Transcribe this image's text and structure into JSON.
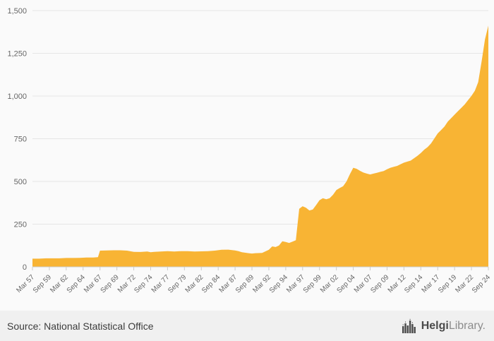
{
  "chart": {
    "colors": {
      "area": "#f8b434",
      "grid": "#e6e6e6",
      "axis_line": "#cccccc",
      "axis_text": "#666666",
      "background": "#fafafa",
      "footer_background": "#f0f0f0",
      "logo_dark": "#4a4a4a",
      "logo_light": "#8c8c8c"
    }
  },
  "chart_data": {
    "type": "area",
    "title": "",
    "xlabel": "",
    "ylabel": "",
    "grid": true,
    "legend": false,
    "ylim": [
      0,
      1500
    ],
    "xlim": [
      1957.2,
      2024.7
    ],
    "y_ticks": [
      0,
      250,
      500,
      750,
      1000,
      1250,
      1500
    ],
    "y_tick_labels": [
      "0",
      "250",
      "500",
      "750",
      "1,000",
      "1,250",
      "1,500"
    ],
    "x_tick_positions": [
      1957.2,
      1959.7,
      1962.2,
      1964.7,
      1967.2,
      1969.7,
      1972.2,
      1974.7,
      1977.2,
      1979.7,
      1982.2,
      1984.7,
      1987.2,
      1989.7,
      1992.2,
      1994.7,
      1997.2,
      1999.7,
      2002.2,
      2004.7,
      2007.2,
      2009.7,
      2012.2,
      2014.7,
      2017.2,
      2019.7,
      2022.2,
      2024.7
    ],
    "x_tick_labels": [
      "Mar 57",
      "Sep 59",
      "Mar 62",
      "Sep 64",
      "Mar 67",
      "Sep 69",
      "Mar 72",
      "Sep 74",
      "Mar 77",
      "Sep 79",
      "Mar 82",
      "Sep 84",
      "Mar 87",
      "Sep 89",
      "Mar 92",
      "Sep 94",
      "Mar 97",
      "Sep 99",
      "Mar 02",
      "Sep 04",
      "Mar 07",
      "Sep 09",
      "Mar 12",
      "Sep 14",
      "Mar 17",
      "Sep 19",
      "Mar 22",
      "Sep 24"
    ],
    "x": [
      1957.2,
      1958.2,
      1959.2,
      1960.2,
      1961.2,
      1962.2,
      1963.2,
      1964.2,
      1965.2,
      1966.2,
      1966.9,
      1967.2,
      1968.2,
      1969.2,
      1970.2,
      1971.2,
      1972.2,
      1973.2,
      1974.2,
      1974.7,
      1975.2,
      1976.2,
      1977.2,
      1978.2,
      1979.2,
      1980.2,
      1981.2,
      1982.2,
      1983.2,
      1984.2,
      1985.2,
      1986.2,
      1987.2,
      1987.7,
      1988.2,
      1989.2,
      1989.7,
      1990.2,
      1991.2,
      1992.2,
      1992.7,
      1993.2,
      1993.7,
      1994.2,
      1994.7,
      1995.2,
      1995.7,
      1996.2,
      1996.7,
      1997.2,
      1997.7,
      1998.2,
      1998.7,
      1999.2,
      1999.7,
      2000.2,
      2000.7,
      2001.2,
      2001.7,
      2002.2,
      2002.7,
      2003.2,
      2003.7,
      2004.2,
      2004.7,
      2005.2,
      2005.7,
      2006.2,
      2006.7,
      2007.2,
      2007.7,
      2008.2,
      2008.7,
      2009.2,
      2009.7,
      2010.2,
      2010.7,
      2011.2,
      2011.7,
      2012.2,
      2012.7,
      2013.2,
      2013.7,
      2014.2,
      2014.7,
      2015.2,
      2015.7,
      2016.2,
      2016.7,
      2017.2,
      2017.7,
      2018.2,
      2018.7,
      2019.2,
      2019.7,
      2020.2,
      2020.7,
      2021.2,
      2021.7,
      2022.2,
      2022.7,
      2023.2,
      2023.7,
      2024.2,
      2024.7
    ],
    "values": [
      48,
      48,
      50,
      50,
      50,
      52,
      52,
      53,
      55,
      55,
      57,
      95,
      96,
      97,
      97,
      95,
      88,
      87,
      90,
      86,
      88,
      90,
      92,
      90,
      92,
      92,
      90,
      91,
      92,
      95,
      100,
      101,
      96,
      92,
      86,
      80,
      78,
      80,
      82,
      100,
      120,
      116,
      125,
      150,
      146,
      140,
      148,
      156,
      340,
      355,
      346,
      330,
      336,
      362,
      390,
      402,
      396,
      402,
      422,
      450,
      462,
      472,
      500,
      542,
      580,
      574,
      562,
      552,
      546,
      541,
      546,
      551,
      556,
      561,
      571,
      580,
      586,
      591,
      601,
      610,
      616,
      622,
      636,
      650,
      666,
      686,
      701,
      722,
      751,
      781,
      801,
      821,
      851,
      871,
      891,
      911,
      931,
      951,
      976,
      1001,
      1031,
      1081,
      1201,
      1331,
      1412
    ]
  },
  "footer": {
    "source_text": "Source: National Statistical Office",
    "logo": {
      "primary": "Helgi",
      "secondary": "Library.",
      "icon": "bar-building-icon"
    }
  }
}
